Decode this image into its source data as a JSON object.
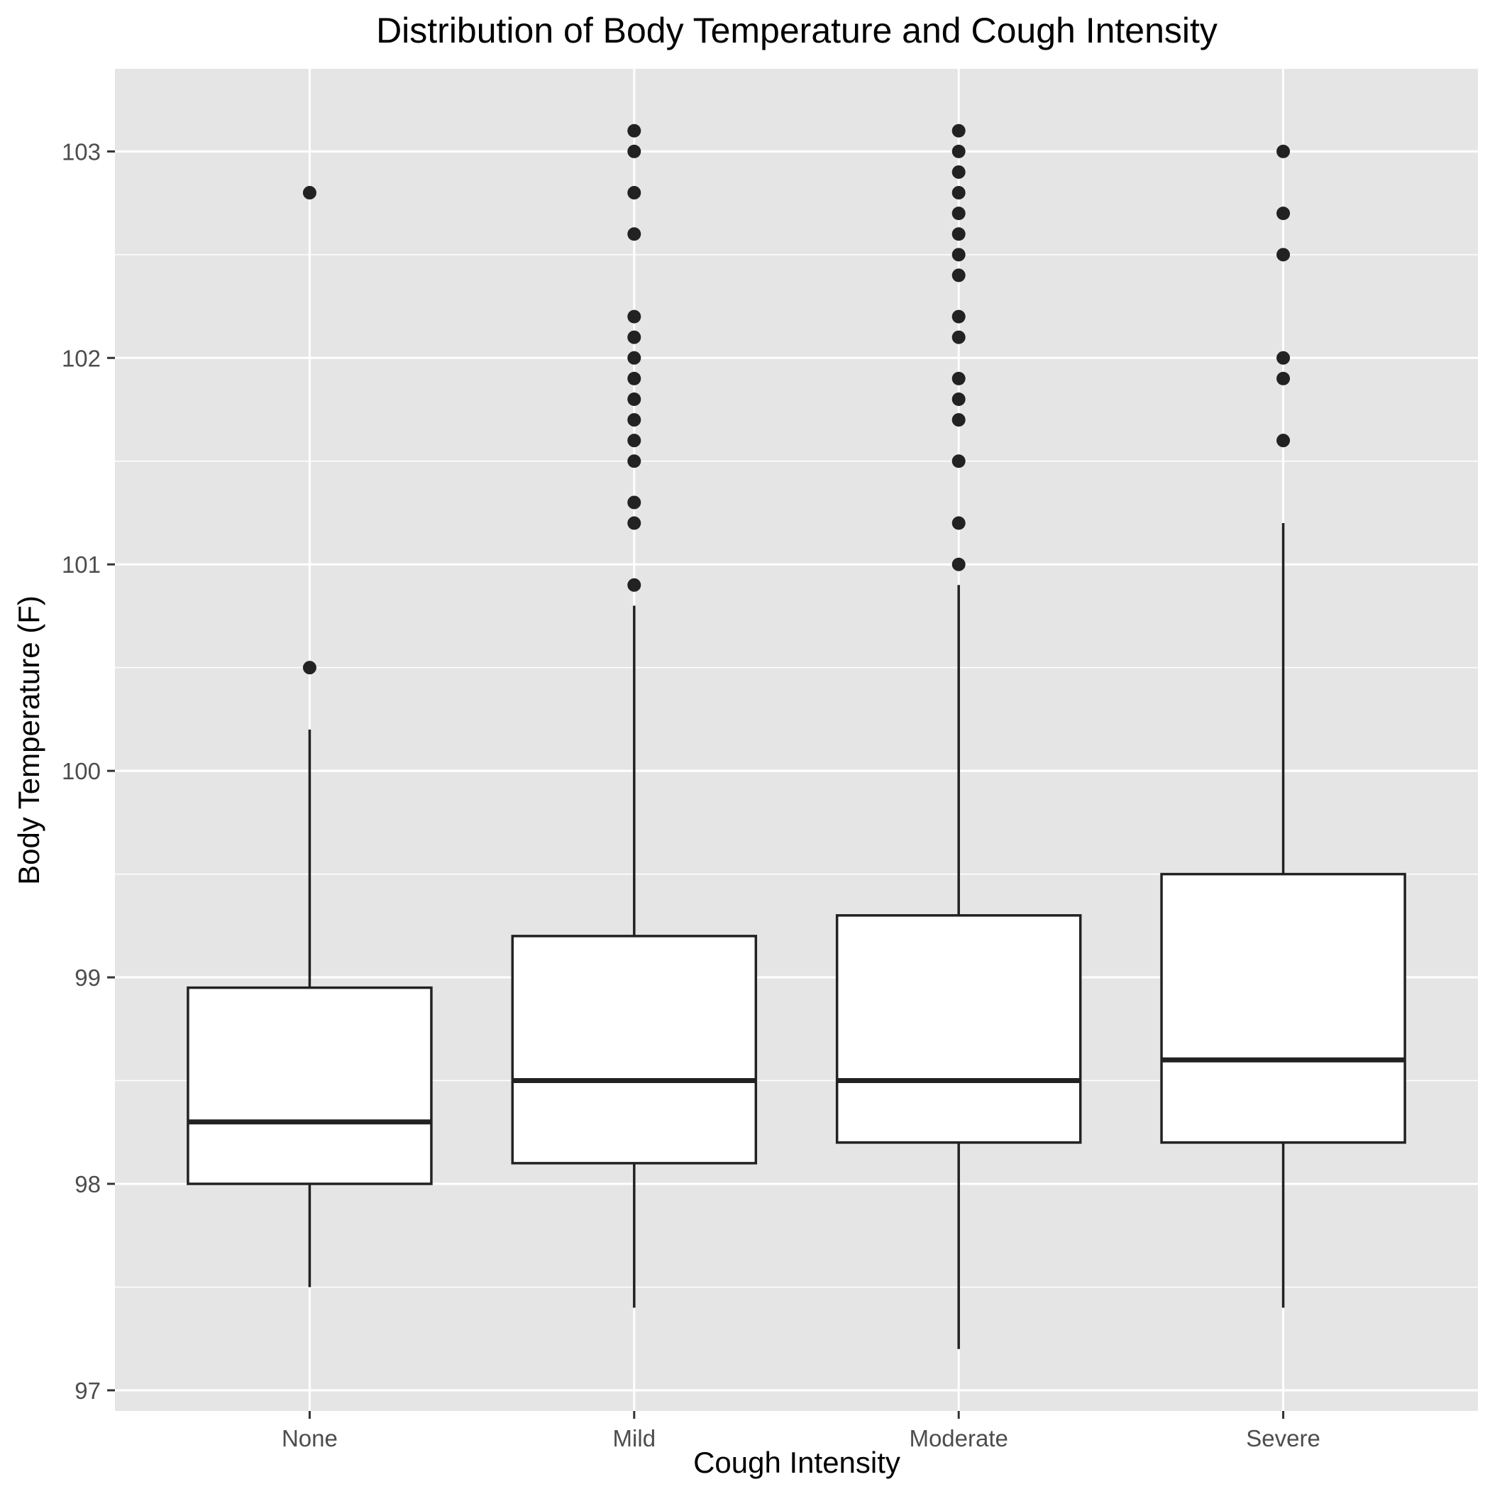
{
  "chart_data": {
    "type": "box",
    "title": "Distribution of Body Temperature and Cough Intensity",
    "xlabel": "Cough Intensity",
    "ylabel": "Body Temperature (F)",
    "ylim": [
      96.9,
      103.4
    ],
    "y_ticks": [
      97,
      98,
      99,
      100,
      101,
      102,
      103
    ],
    "y_minor_ticks": [
      97.5,
      98.5,
      99.5,
      100.5,
      101.5,
      102.5
    ],
    "grid": true,
    "legend": "none",
    "categories": [
      "None",
      "Mild",
      "Moderate",
      "Severe"
    ],
    "boxes": [
      {
        "category": "None",
        "whisker_low": 97.5,
        "q1": 98.0,
        "median": 98.3,
        "q3": 98.95,
        "whisker_high": 100.2,
        "outliers": [
          100.5,
          102.8
        ]
      },
      {
        "category": "Mild",
        "whisker_low": 97.4,
        "q1": 98.1,
        "median": 98.5,
        "q3": 99.2,
        "whisker_high": 100.8,
        "outliers": [
          100.9,
          101.2,
          101.3,
          101.5,
          101.6,
          101.7,
          101.8,
          101.9,
          102.0,
          102.1,
          102.2,
          102.6,
          102.8,
          103.0,
          103.1
        ]
      },
      {
        "category": "Moderate",
        "whisker_low": 97.2,
        "q1": 98.2,
        "median": 98.5,
        "q3": 99.3,
        "whisker_high": 100.9,
        "outliers": [
          101.0,
          101.2,
          101.5,
          101.7,
          101.8,
          101.9,
          102.1,
          102.2,
          102.4,
          102.5,
          102.6,
          102.7,
          102.8,
          102.9,
          103.0,
          103.1
        ]
      },
      {
        "category": "Severe",
        "whisker_low": 97.4,
        "q1": 98.2,
        "median": 98.6,
        "q3": 99.5,
        "whisker_high": 101.2,
        "outliers": [
          101.6,
          101.9,
          102.0,
          102.5,
          102.7,
          103.0
        ]
      }
    ],
    "colors": {
      "panel_background": "#e5e5e5",
      "grid_line": "#ffffff",
      "box_fill": "#ffffff",
      "box_stroke": "#222222",
      "outlier_point": "#222222",
      "axis_text": "#4d4d4d",
      "title_text": "#000000"
    }
  }
}
